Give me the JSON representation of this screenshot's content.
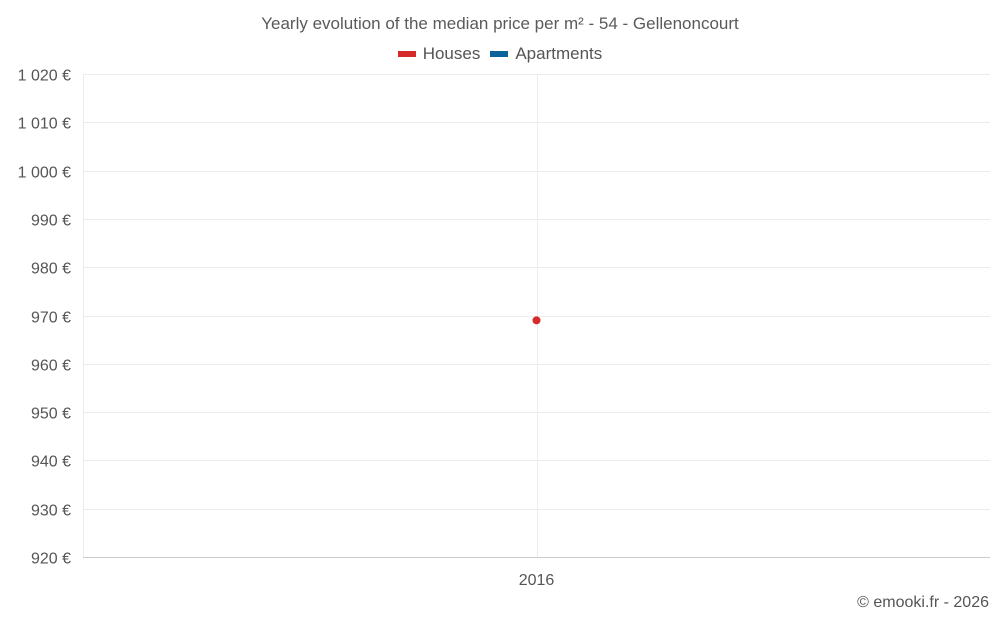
{
  "chart_data": {
    "type": "line",
    "title": "Yearly evolution of the median price per m² - 54 - Gellenoncourt",
    "categories": [
      "2016"
    ],
    "series": [
      {
        "name": "Houses",
        "color": "#d42a2a",
        "values": [
          969
        ]
      },
      {
        "name": "Apartments",
        "color": "#0a6499",
        "values": [
          null
        ]
      }
    ],
    "ylim": [
      920,
      1020
    ],
    "yticks": [
      920,
      930,
      940,
      950,
      960,
      970,
      980,
      990,
      1000,
      1010,
      1020
    ],
    "ytick_labels": [
      "920 €",
      "930 €",
      "940 €",
      "950 €",
      "960 €",
      "970 €",
      "980 €",
      "990 €",
      "1 000 €",
      "1 010 €",
      "1 020 €"
    ],
    "xlabel": "",
    "ylabel": "",
    "grid": true,
    "legend": "top-center"
  },
  "legend": {
    "items": [
      {
        "label": "Houses",
        "color": "#d42a2a"
      },
      {
        "label": "Apartments",
        "color": "#0a6499"
      }
    ]
  },
  "credits": "© emooki.fr - 2026"
}
